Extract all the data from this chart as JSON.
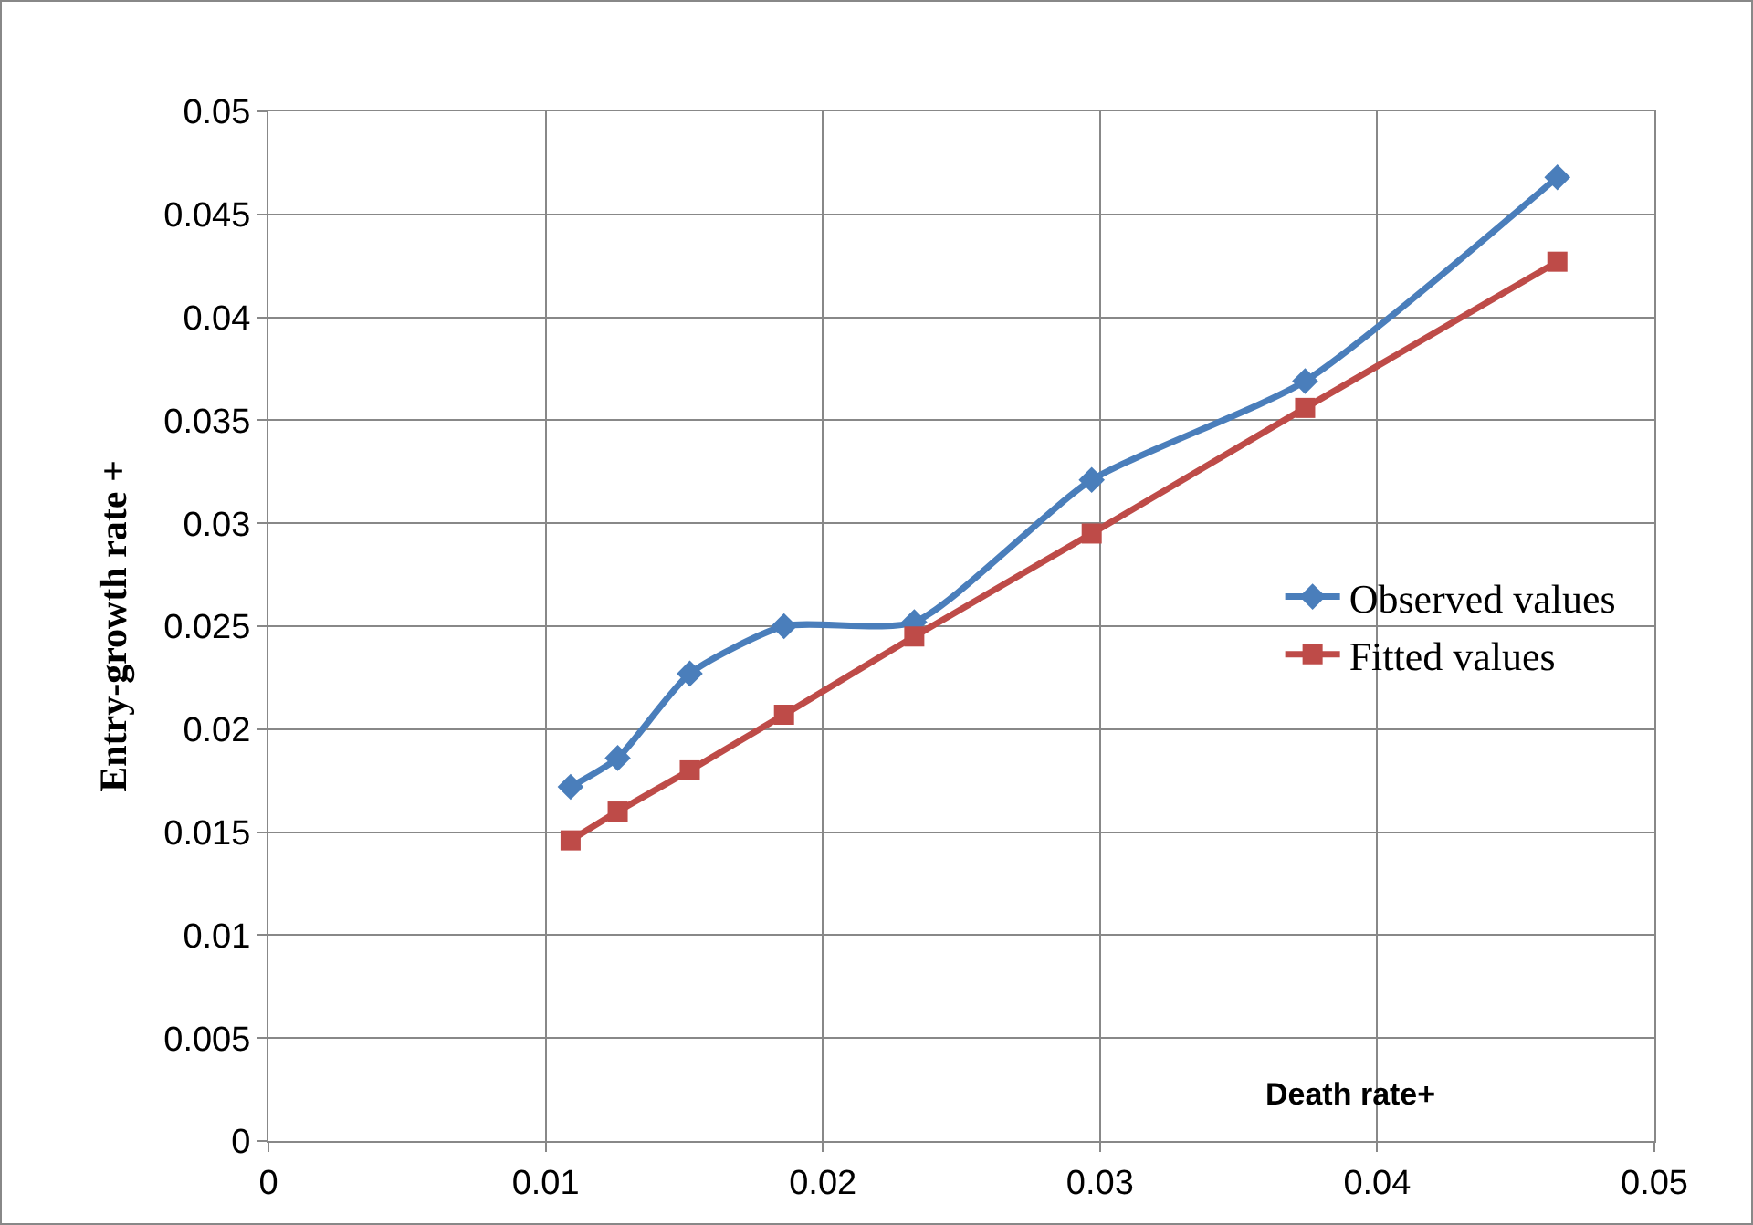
{
  "chart_data": {
    "type": "line",
    "xlabel": "Death rate+",
    "ylabel": "Entry-growth rate +",
    "x": [
      0.0109,
      0.0126,
      0.0152,
      0.0186,
      0.0233,
      0.0297,
      0.0374,
      0.0465
    ],
    "series": [
      {
        "name": "Observed values",
        "color": "#4a7ebb",
        "marker": "diamond",
        "values": [
          0.0172,
          0.0186,
          0.0227,
          0.025,
          0.0252,
          0.0321,
          0.0369,
          0.0468
        ]
      },
      {
        "name": "Fitted values",
        "color": "#be4b48",
        "marker": "square",
        "values": [
          0.0146,
          0.016,
          0.018,
          0.0207,
          0.0245,
          0.0295,
          0.0356,
          0.0427
        ]
      }
    ],
    "xlim": [
      0,
      0.05
    ],
    "xticks": [
      0,
      0.01,
      0.02,
      0.03,
      0.04,
      0.05
    ],
    "ylim": [
      0,
      0.05
    ],
    "yticks": [
      0,
      0.005,
      0.01,
      0.015,
      0.02,
      0.025,
      0.03,
      0.035,
      0.04,
      0.045,
      0.05
    ],
    "grid": true,
    "legend": "right",
    "line_style": "solid"
  }
}
